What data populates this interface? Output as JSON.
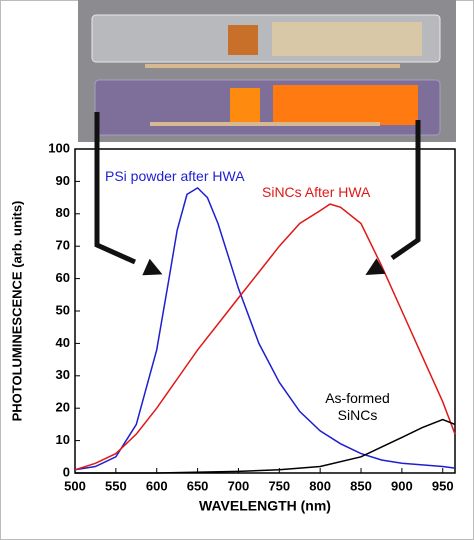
{
  "chart_data": {
    "type": "line",
    "xlabel": "WAVELENGTH (nm)",
    "ylabel": "PHOTOLUMINESCENCE (arb. units)",
    "xlim": [
      500,
      965
    ],
    "ylim": [
      0,
      100
    ],
    "xticks": [
      500,
      550,
      600,
      650,
      700,
      750,
      800,
      850,
      900,
      950
    ],
    "yticks": [
      0,
      10,
      20,
      30,
      40,
      50,
      60,
      70,
      80,
      90,
      100
    ],
    "grid": false,
    "series": [
      {
        "name": "PSi powder after HWA",
        "color": "#1f1fd0",
        "x": [
          500,
          525,
          550,
          575,
          600,
          615,
          625,
          637,
          650,
          662,
          675,
          700,
          725,
          750,
          775,
          800,
          825,
          850,
          875,
          900,
          925,
          950,
          965
        ],
        "values": [
          1,
          2,
          5,
          15,
          38,
          60,
          75,
          86,
          88,
          85,
          77,
          57,
          40,
          28,
          19,
          13,
          9,
          6,
          4,
          3,
          2.5,
          2,
          1.5
        ]
      },
      {
        "name": "SiNCs After HWA",
        "color": "#e01818",
        "x": [
          500,
          525,
          550,
          575,
          600,
          625,
          650,
          675,
          700,
          725,
          750,
          775,
          800,
          812,
          825,
          850,
          875,
          900,
          925,
          950,
          965
        ],
        "values": [
          1,
          3,
          6,
          12,
          20,
          29,
          38,
          46,
          54,
          62,
          70,
          77,
          81,
          83,
          82,
          77,
          64,
          50,
          36,
          22,
          12
        ]
      },
      {
        "name": "As-formed SiNCs",
        "color": "#000000",
        "x": [
          500,
          600,
          700,
          750,
          800,
          850,
          875,
          900,
          925,
          950,
          965
        ],
        "values": [
          0,
          0,
          0.5,
          1,
          2,
          5,
          8,
          11,
          14,
          16.5,
          15
        ]
      }
    ]
  }
}
